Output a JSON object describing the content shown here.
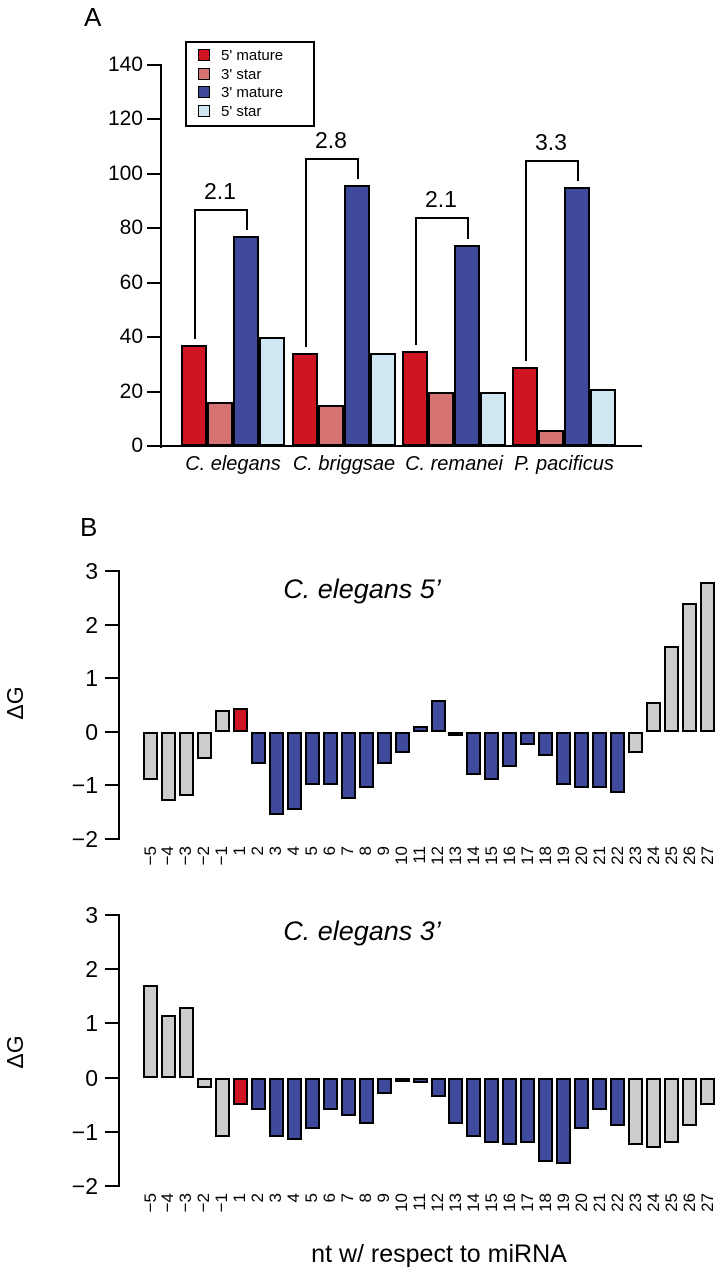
{
  "figure": {
    "panel_a_label": "A",
    "panel_b_label": "B"
  },
  "colors": {
    "red": "#cf1522",
    "salmon": "#d57373",
    "blue": "#404a9d",
    "light_blue": "#cfe6f3",
    "gray": "#cccccc",
    "axis": "#000000"
  },
  "chart_data": [
    {
      "id": "panel-a-arm-usage",
      "type": "bar",
      "title": "",
      "categories": [
        "C. elegans",
        "C. briggsae",
        "C. remanei",
        "P. pacificus"
      ],
      "series": [
        {
          "name": "5' mature",
          "color_key": "red",
          "values": [
            37,
            34,
            35,
            29
          ]
        },
        {
          "name": "3' star",
          "color_key": "salmon",
          "values": [
            16,
            15,
            20,
            6
          ]
        },
        {
          "name": "3' mature",
          "color_key": "blue",
          "values": [
            77,
            96,
            74,
            95
          ]
        },
        {
          "name": "5' star",
          "color_key": "light_blue",
          "values": [
            40,
            34,
            20,
            21
          ]
        }
      ],
      "ylim": [
        0,
        140
      ],
      "yticks": [
        0,
        20,
        40,
        60,
        80,
        100,
        120,
        140
      ],
      "grid": false,
      "legend": {
        "position": "top-left",
        "entries": [
          "5' mature",
          "3' star",
          "3' mature",
          "5' star"
        ]
      },
      "annotations": [
        {
          "label": "2.1",
          "group": 0,
          "from_series": "5' mature",
          "to_series": "3' mature",
          "height": 87
        },
        {
          "label": "2.8",
          "group": 1,
          "from_series": "5' mature",
          "to_series": "3' mature",
          "height": 106
        },
        {
          "label": "2.1",
          "group": 2,
          "from_series": "5' mature",
          "to_series": "3' mature",
          "height": 84
        },
        {
          "label": "3.3",
          "group": 3,
          "from_series": "5' mature",
          "to_series": "3' mature",
          "height": 105
        }
      ]
    },
    {
      "id": "celegans-5prime",
      "type": "bar",
      "title": "C. elegans 5’",
      "ylabel": "ΔG",
      "ylim": [
        -2,
        3
      ],
      "yticks": [
        -2,
        -1,
        0,
        1,
        2,
        3
      ],
      "grid": false,
      "categories": [
        "−5",
        "−4",
        "−3",
        "−2",
        "−1",
        "1",
        "2",
        "3",
        "4",
        "5",
        "6",
        "7",
        "8",
        "9",
        "10",
        "11",
        "12",
        "13",
        "14",
        "15",
        "16",
        "17",
        "18",
        "19",
        "20",
        "21",
        "22",
        "23",
        "24",
        "25",
        "26",
        "27"
      ],
      "values": [
        -0.9,
        -1.3,
        -1.2,
        -0.5,
        0.4,
        0.45,
        -0.6,
        -1.55,
        -1.45,
        -1.0,
        -1.0,
        -1.25,
        -1.05,
        -0.6,
        -0.4,
        0.1,
        0.6,
        -0.02,
        -0.8,
        -0.9,
        -0.65,
        -0.25,
        -0.45,
        -1.0,
        -1.05,
        -1.05,
        -1.15,
        -0.4,
        0.55,
        1.6,
        2.4,
        2.8
      ],
      "bar_colors": [
        "gray",
        "gray",
        "gray",
        "gray",
        "gray",
        "red",
        "blue",
        "blue",
        "blue",
        "blue",
        "blue",
        "blue",
        "blue",
        "blue",
        "blue",
        "blue",
        "blue",
        "blue",
        "blue",
        "blue",
        "blue",
        "blue",
        "blue",
        "blue",
        "blue",
        "blue",
        "blue",
        "gray",
        "gray",
        "gray",
        "gray",
        "gray"
      ]
    },
    {
      "id": "celegans-3prime",
      "type": "bar",
      "title": "C. elegans 3’",
      "ylabel": "ΔG",
      "xlabel": "nt w/ respect to miRNA",
      "ylim": [
        -2,
        3
      ],
      "yticks": [
        -2,
        -1,
        0,
        1,
        2,
        3
      ],
      "grid": false,
      "categories": [
        "−5",
        "−4",
        "−3",
        "−2",
        "−1",
        "1",
        "2",
        "3",
        "4",
        "5",
        "6",
        "7",
        "8",
        "9",
        "10",
        "11",
        "12",
        "13",
        "14",
        "15",
        "16",
        "17",
        "18",
        "19",
        "20",
        "21",
        "22",
        "23",
        "24",
        "25",
        "26",
        "27"
      ],
      "values": [
        1.7,
        1.15,
        1.3,
        -0.2,
        -1.1,
        -0.5,
        -0.6,
        -1.1,
        -1.15,
        -0.95,
        -0.6,
        -0.7,
        -0.85,
        -0.3,
        -0.02,
        -0.1,
        -0.35,
        -0.85,
        -1.1,
        -1.2,
        -1.25,
        -1.2,
        -1.55,
        -1.6,
        -0.95,
        -0.6,
        -0.9,
        -1.25,
        -1.3,
        -1.2,
        -0.9,
        -0.5
      ],
      "bar_colors": [
        "gray",
        "gray",
        "gray",
        "gray",
        "gray",
        "red",
        "blue",
        "blue",
        "blue",
        "blue",
        "blue",
        "blue",
        "blue",
        "blue",
        "blue",
        "blue",
        "blue",
        "blue",
        "blue",
        "blue",
        "blue",
        "blue",
        "blue",
        "blue",
        "blue",
        "blue",
        "blue",
        "gray",
        "gray",
        "gray",
        "gray",
        "gray"
      ]
    }
  ]
}
